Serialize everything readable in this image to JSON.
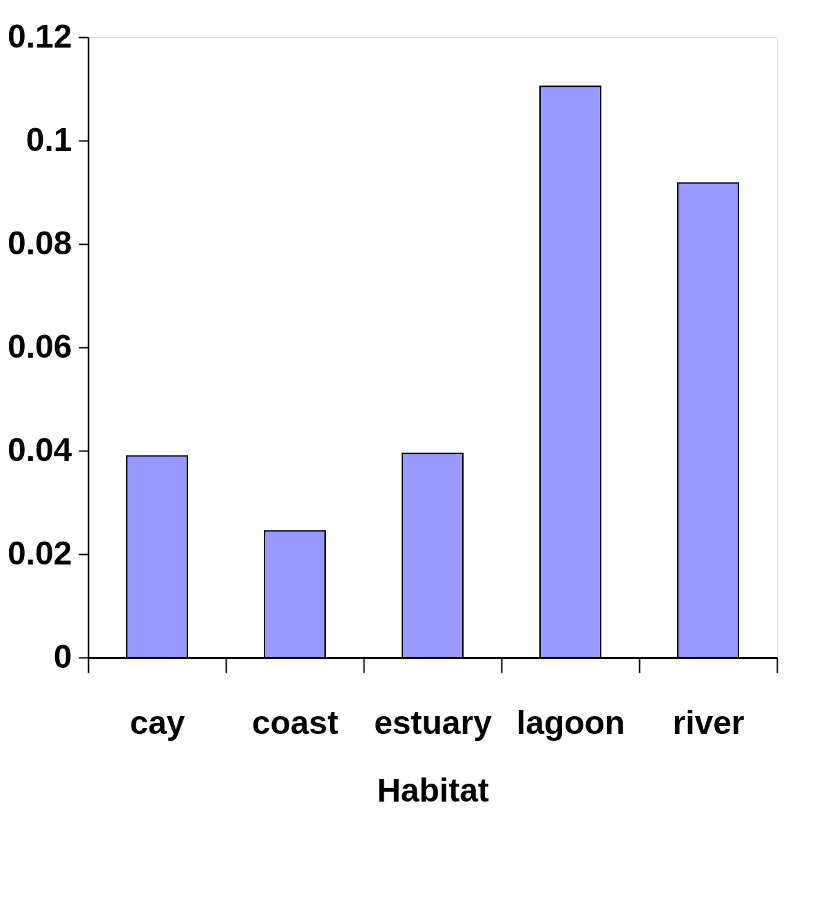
{
  "chart_data": {
    "type": "bar",
    "xlabel": "Habitat",
    "categories": [
      "cay",
      "coast",
      "estuary",
      "lagoon",
      "river"
    ],
    "values": [
      0.039,
      0.0245,
      0.0395,
      0.1105,
      0.0918
    ],
    "color": "#9999ff",
    "ylim": [
      0,
      0.12
    ],
    "yticks": [
      0,
      0.02,
      0.04,
      0.06,
      0.08,
      0.1,
      0.12
    ],
    "grid": false
  }
}
